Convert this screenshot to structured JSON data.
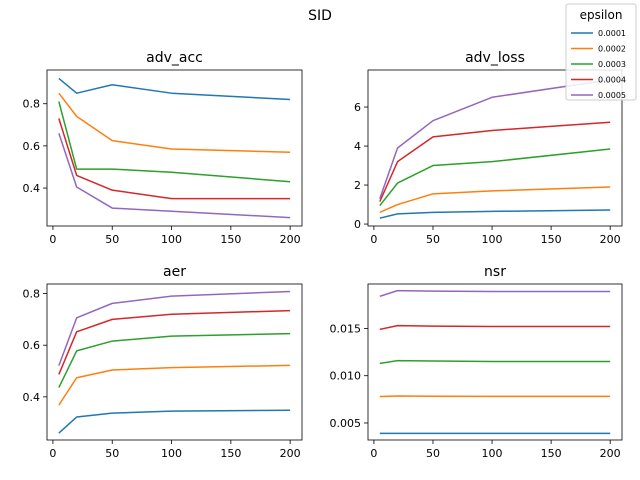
{
  "figure": {
    "title": "SID",
    "legend": {
      "title": "epsilon",
      "placement": "top-right",
      "entries": [
        "0.0001",
        "0.0002",
        "0.0003",
        "0.0004",
        "0.0005"
      ],
      "colors": [
        "#1f77b4",
        "#ff7f0e",
        "#2ca02c",
        "#d62728",
        "#9467bd"
      ]
    }
  },
  "chart_data": [
    {
      "type": "line",
      "title": "adv_acc",
      "x": [
        5,
        20,
        50,
        100,
        200
      ],
      "xlim": [
        -5,
        210
      ],
      "xticks": [
        0,
        50,
        100,
        150,
        200
      ],
      "ylim": [
        0.22,
        0.96
      ],
      "yticks": [
        0.4,
        0.6,
        0.8
      ],
      "ytick_labels": [
        "0.4",
        "0.6",
        "0.8"
      ],
      "series": [
        {
          "name": "0.0001",
          "values": [
            0.92,
            0.85,
            0.89,
            0.85,
            0.82
          ]
        },
        {
          "name": "0.0002",
          "values": [
            0.85,
            0.74,
            0.625,
            0.585,
            0.57
          ]
        },
        {
          "name": "0.0003",
          "values": [
            0.81,
            0.49,
            0.49,
            0.475,
            0.43
          ]
        },
        {
          "name": "0.0004",
          "values": [
            0.73,
            0.46,
            0.39,
            0.35,
            0.35
          ]
        },
        {
          "name": "0.0005",
          "values": [
            0.66,
            0.405,
            0.305,
            0.29,
            0.26
          ]
        }
      ]
    },
    {
      "type": "line",
      "title": "adv_loss",
      "x": [
        5,
        20,
        50,
        100,
        200
      ],
      "xlim": [
        -5,
        210
      ],
      "xticks": [
        0,
        50,
        100,
        150,
        200
      ],
      "ylim": [
        -0.1,
        7.9
      ],
      "yticks": [
        0,
        2,
        4,
        6
      ],
      "ytick_labels": [
        "0",
        "2",
        "4",
        "6"
      ],
      "series": [
        {
          "name": "0.0001",
          "values": [
            0.3,
            0.52,
            0.6,
            0.65,
            0.72
          ]
        },
        {
          "name": "0.0002",
          "values": [
            0.6,
            1.0,
            1.55,
            1.7,
            1.9
          ]
        },
        {
          "name": "0.0003",
          "values": [
            0.95,
            2.1,
            3.0,
            3.2,
            3.85
          ]
        },
        {
          "name": "0.0004",
          "values": [
            1.15,
            3.2,
            4.47,
            4.8,
            5.22
          ]
        },
        {
          "name": "0.0005",
          "values": [
            1.3,
            3.9,
            5.3,
            6.5,
            7.4
          ]
        }
      ]
    },
    {
      "type": "line",
      "title": "aer",
      "x": [
        5,
        20,
        50,
        100,
        200
      ],
      "xlim": [
        -5,
        210
      ],
      "xticks": [
        0,
        50,
        100,
        150,
        200
      ],
      "ylim": [
        0.233,
        0.837
      ],
      "yticks": [
        0.4,
        0.6,
        0.8
      ],
      "ytick_labels": [
        "0.4",
        "0.6",
        "0.8"
      ],
      "series": [
        {
          "name": "0.0001",
          "values": [
            0.26,
            0.322,
            0.337,
            0.345,
            0.348
          ]
        },
        {
          "name": "0.0002",
          "values": [
            0.368,
            0.474,
            0.504,
            0.513,
            0.522
          ]
        },
        {
          "name": "0.0003",
          "values": [
            0.436,
            0.578,
            0.616,
            0.635,
            0.645
          ]
        },
        {
          "name": "0.0004",
          "values": [
            0.487,
            0.652,
            0.7,
            0.72,
            0.734
          ]
        },
        {
          "name": "0.0005",
          "values": [
            0.521,
            0.706,
            0.762,
            0.79,
            0.808
          ]
        }
      ]
    },
    {
      "type": "line",
      "title": "nsr",
      "x": [
        5,
        20,
        50,
        100,
        200
      ],
      "xlim": [
        -5,
        210
      ],
      "xticks": [
        0,
        50,
        100,
        150,
        200
      ],
      "ylim": [
        0.0032,
        0.0197
      ],
      "yticks": [
        0.005,
        0.01,
        0.015
      ],
      "ytick_labels": [
        "0.005",
        "0.010",
        "0.015"
      ],
      "series": [
        {
          "name": "0.0001",
          "values": [
            0.0039,
            0.0039,
            0.0039,
            0.0039,
            0.0039
          ]
        },
        {
          "name": "0.0002",
          "values": [
            0.0078,
            0.00785,
            0.00783,
            0.00782,
            0.00782
          ]
        },
        {
          "name": "0.0003",
          "values": [
            0.0113,
            0.0116,
            0.01155,
            0.0115,
            0.0115
          ]
        },
        {
          "name": "0.0004",
          "values": [
            0.0149,
            0.0153,
            0.01525,
            0.0152,
            0.0152
          ]
        },
        {
          "name": "0.0005",
          "values": [
            0.0184,
            0.019,
            0.01895,
            0.0189,
            0.0189
          ]
        }
      ]
    }
  ]
}
